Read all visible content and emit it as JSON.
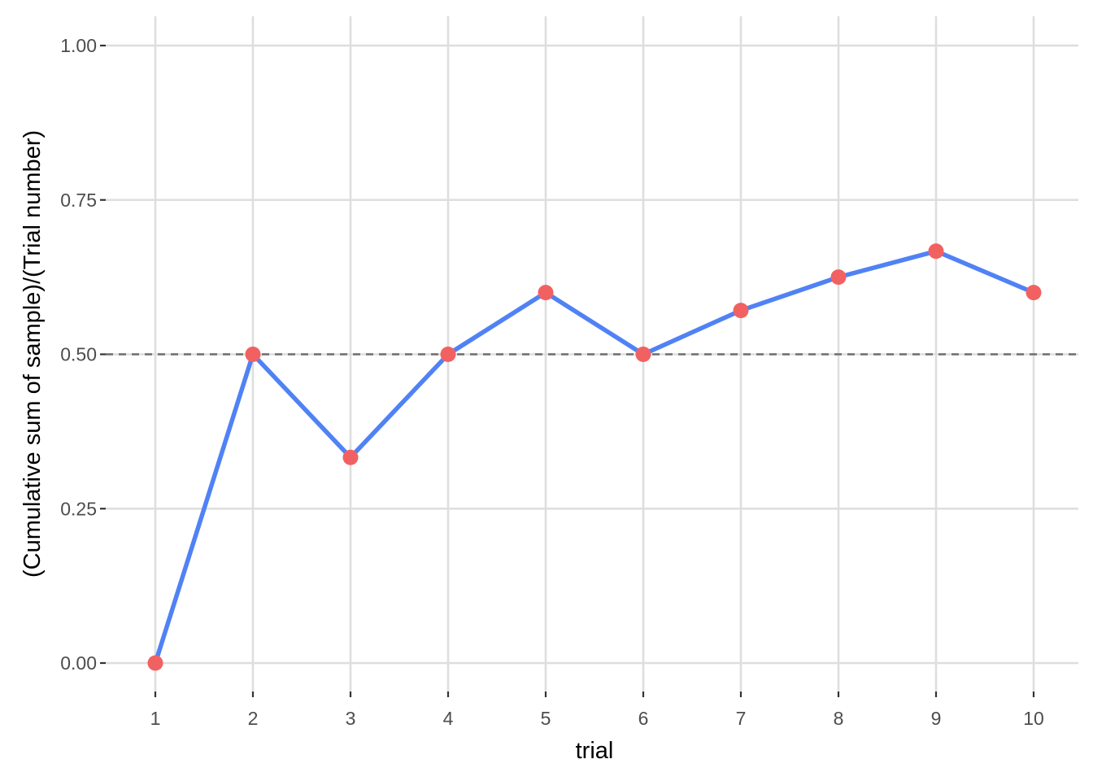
{
  "chart_data": {
    "type": "line",
    "title": "",
    "xlabel": "trial",
    "ylabel": "(Cumulative sum of sample)/(Trial number)",
    "x": [
      1,
      2,
      3,
      4,
      5,
      6,
      7,
      8,
      9,
      10
    ],
    "series": [
      {
        "values": [
          0.0,
          0.5,
          0.333,
          0.5,
          0.6,
          0.5,
          0.571,
          0.625,
          0.667,
          0.6
        ],
        "line_color": "#5082f5",
        "point_color": "#f26161"
      }
    ],
    "reference_line": {
      "y": 0.5,
      "style": "dashed",
      "color": "#6e6e6e"
    },
    "xlim": [
      1,
      10
    ],
    "ylim": [
      0,
      1
    ],
    "x_ticks": [
      "1",
      "2",
      "3",
      "4",
      "5",
      "6",
      "7",
      "8",
      "9",
      "10"
    ],
    "y_ticks": [
      "0.00",
      "0.25",
      "0.50",
      "0.75",
      "1.00"
    ],
    "grid": true,
    "legend": "none"
  }
}
